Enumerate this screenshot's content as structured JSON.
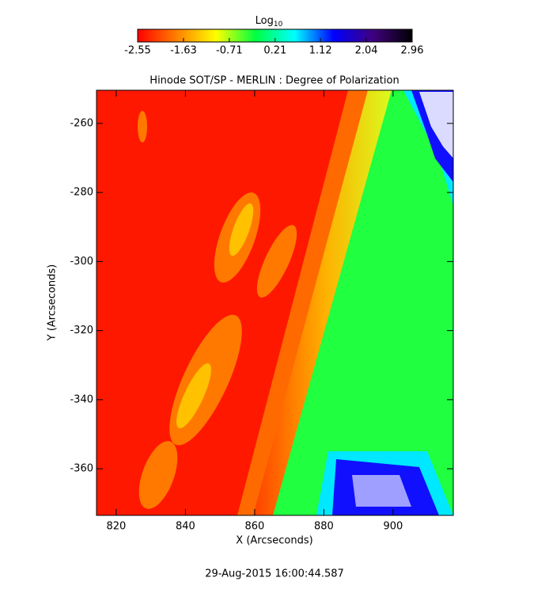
{
  "chart_data": {
    "type": "heatmap",
    "title": "Hinode SOT/SP - MERLIN : Degree of Polarization",
    "xlabel": "X (Arcseconds)",
    "ylabel": "Y (Arcseconds)",
    "xlim": [
      814.3,
      917.4
    ],
    "ylim": [
      -373.5,
      -250.4
    ],
    "xticks": [
      820,
      840,
      860,
      880,
      900
    ],
    "yticks": [
      -260,
      -280,
      -300,
      -320,
      -340,
      -360
    ],
    "colorbar_label": "Log",
    "colorbar_label_subscript": "10",
    "clim": [
      -2.55,
      2.96
    ],
    "colorbar_ticks": [
      -2.55,
      -1.63,
      -0.71,
      0.21,
      1.12,
      2.04,
      2.96
    ],
    "colormap": [
      "#ff0000",
      "#ff8000",
      "#ffff00",
      "#00ff40",
      "#00ffff",
      "#0000ff",
      "#400080",
      "#000000"
    ],
    "timestamp": "29-Aug-2015 16:00:44.587"
  }
}
